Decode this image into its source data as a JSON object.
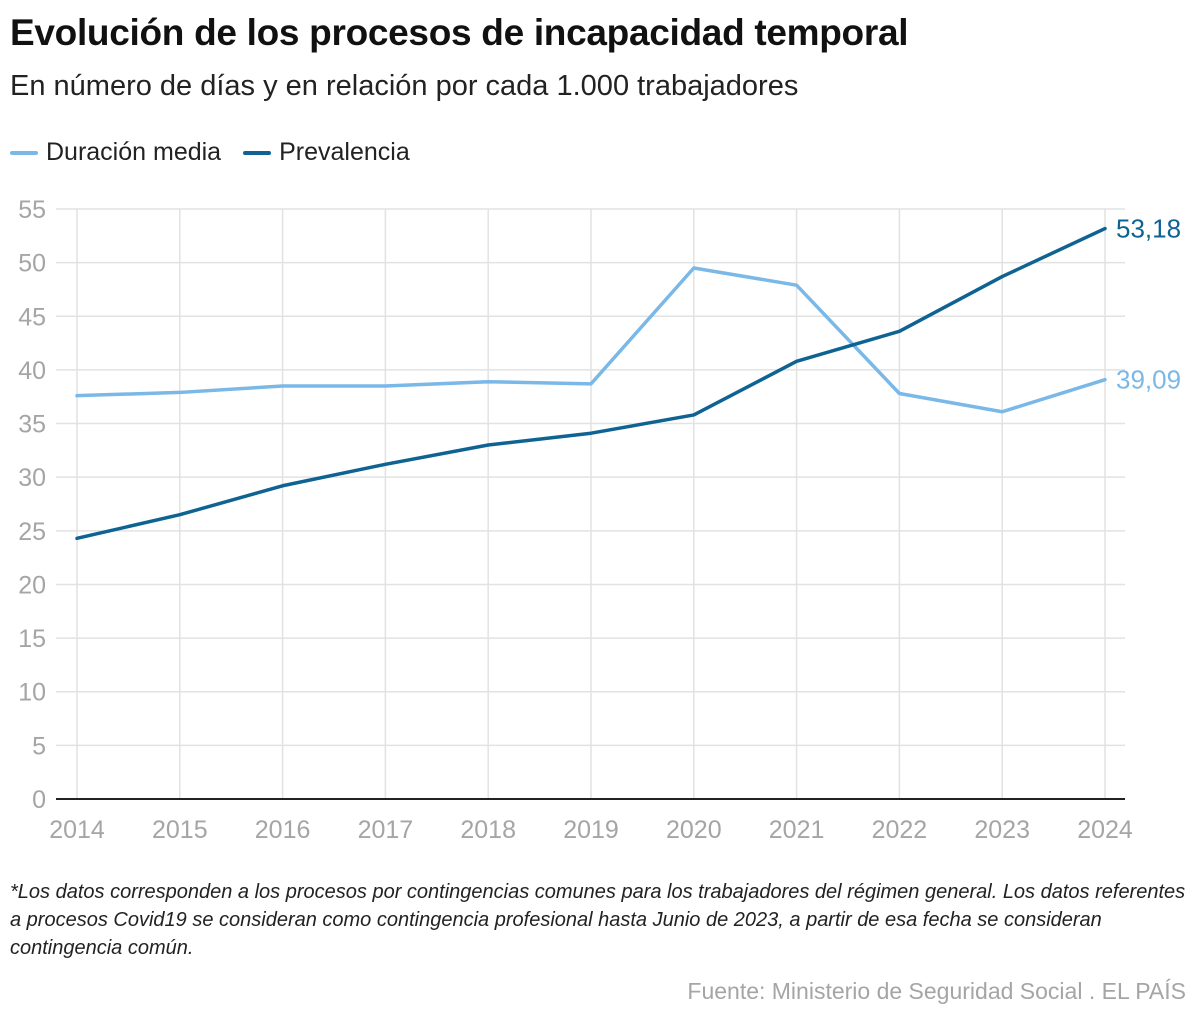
{
  "title": "Evolución de los procesos de incapacidad temporal",
  "subtitle": "En número de días y en relación por cada 1.000 trabajadores",
  "footnote": "*Los datos corresponden a los procesos por contingencias comunes para los trabajadores del régimen general. Los datos referentes a procesos Covid19 se consideran como contingencia profesional hasta Junio de 2023, a partir de esa fecha se consideran contingencia común.",
  "source": "Fuente: Ministerio de Seguridad Social . EL PAÍS",
  "colors": {
    "duracion": "#7ab8e8",
    "prevalencia": "#0e6393",
    "grid": "#e2e2e2",
    "axis": "#222222",
    "tick": "#a5a5a5"
  },
  "chart_data": {
    "type": "line",
    "title": "Evolución de los procesos de incapacidad temporal",
    "subtitle": "En número de días y en relación por cada 1.000 trabajadores",
    "xlabel": "",
    "ylabel": "",
    "x": [
      "2014",
      "2015",
      "2016",
      "2017",
      "2018",
      "2019",
      "2020",
      "2021",
      "2022",
      "2023",
      "2024"
    ],
    "ylim": [
      0,
      55
    ],
    "yticks": [
      0,
      5,
      10,
      15,
      20,
      25,
      30,
      35,
      40,
      45,
      50,
      55
    ],
    "grid": true,
    "legend_position": "top-left",
    "series": [
      {
        "name": "Duración media",
        "color_key": "duracion",
        "values": [
          37.6,
          37.9,
          38.5,
          38.5,
          38.9,
          38.7,
          49.5,
          47.9,
          37.8,
          36.1,
          39.09
        ]
      },
      {
        "name": "Prevalencia",
        "color_key": "prevalencia",
        "values": [
          24.3,
          26.5,
          29.2,
          31.2,
          33.0,
          34.1,
          35.8,
          40.8,
          43.6,
          48.7,
          53.18
        ]
      }
    ],
    "end_labels": {
      "Duración media": "39,09",
      "Prevalencia": "53,18"
    }
  }
}
